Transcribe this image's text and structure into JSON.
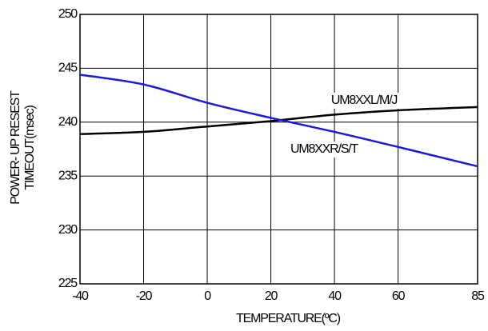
{
  "chart_data": {
    "type": "line",
    "xlabel": "TEMPERATURE(ºC)",
    "ylabel": [
      "POWER- UP RESEST",
      "TIMEOUT(msec)"
    ],
    "x": [
      -40,
      -20,
      0,
      20,
      40,
      60,
      85
    ],
    "series": [
      {
        "name": "UM8XXL/M/J",
        "color": "#000000",
        "values": [
          238.9,
          239.1,
          239.6,
          240.1,
          240.7,
          241.1,
          241.4
        ]
      },
      {
        "name": "UM8XXR/S/T",
        "color": "#1a1adc",
        "values": [
          244.4,
          243.5,
          241.8,
          240.4,
          239.1,
          237.7,
          235.9
        ]
      }
    ],
    "xlim": [
      -40,
      85
    ],
    "xticks": [
      -40,
      -20,
      0,
      20,
      40,
      60,
      85
    ],
    "ylim": [
      225,
      250
    ],
    "yticks": [
      225,
      230,
      235,
      240,
      245,
      250
    ],
    "grid": true
  }
}
